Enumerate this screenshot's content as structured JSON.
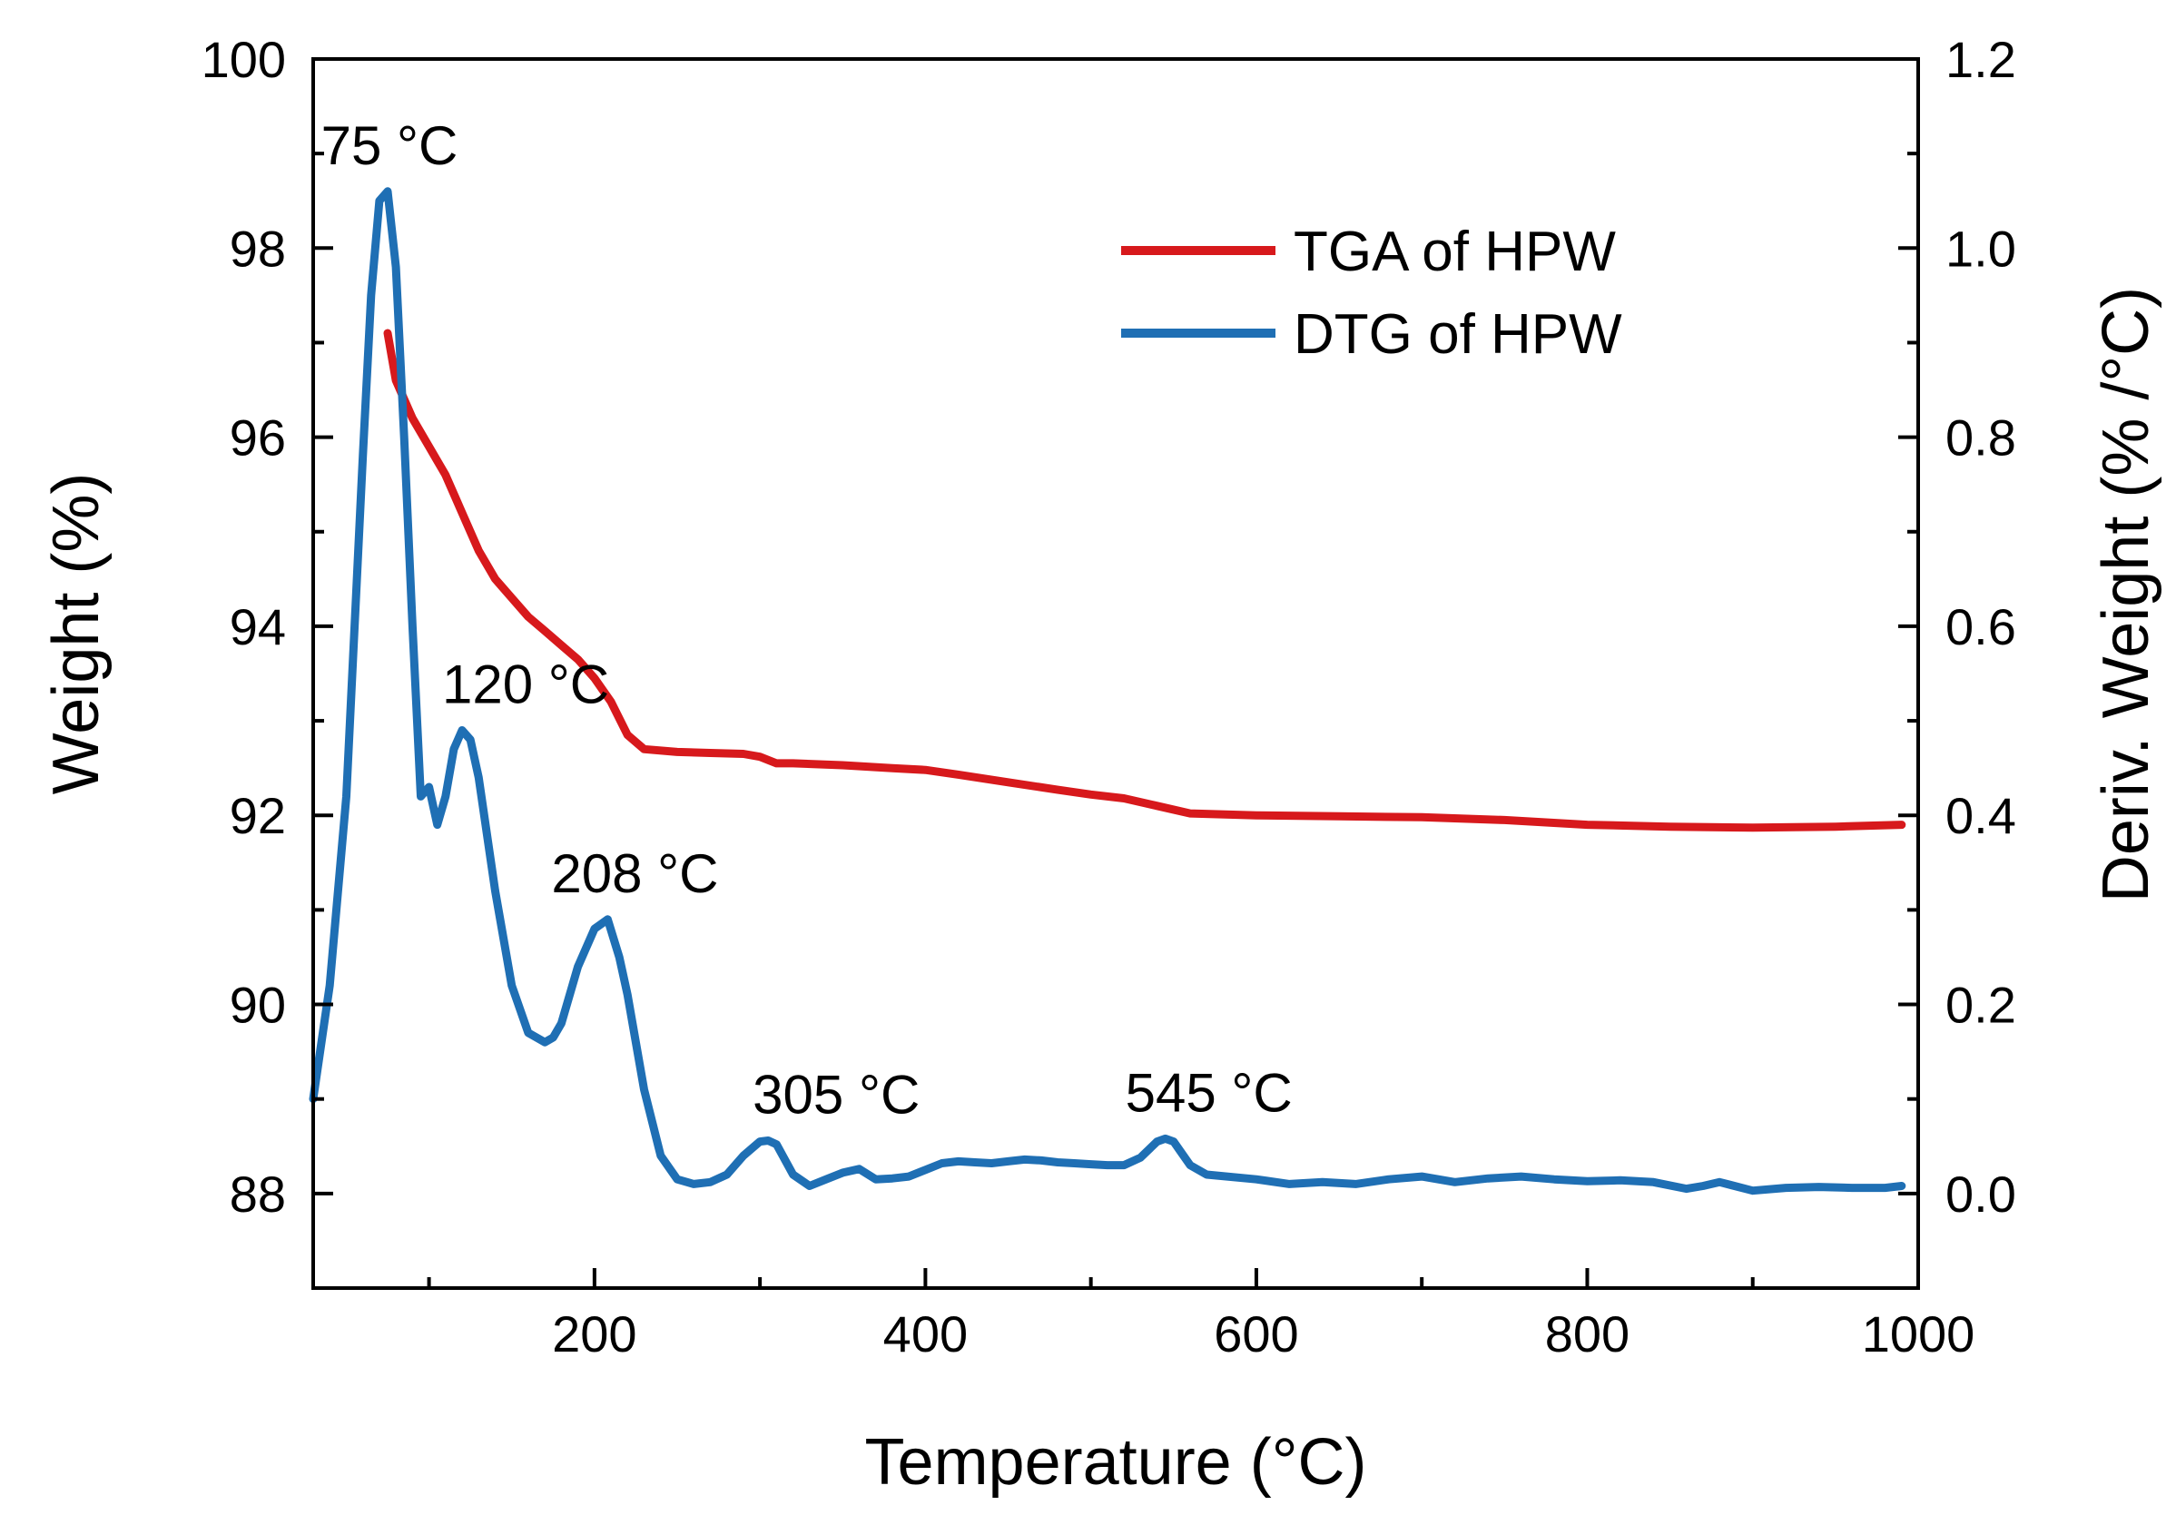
{
  "chart_data": {
    "type": "line",
    "title": "",
    "xlabel": "Temperature (°C)",
    "ylabel_left": "Weight (%)",
    "ylabel_right": "Deriv. Weight (% /°C)",
    "xlim": [
      30,
      1000
    ],
    "ylim_left": [
      87,
      100
    ],
    "ylim_right": [
      -0.1,
      1.2
    ],
    "xticks": [
      200,
      400,
      600,
      800,
      1000
    ],
    "yticks_left": [
      88,
      90,
      92,
      94,
      96,
      98,
      100
    ],
    "yticks_right": [
      0.0,
      0.2,
      0.4,
      0.6,
      0.8,
      1.0,
      1.2
    ],
    "xtick_labels": [
      "200",
      "400",
      "600",
      "800",
      "1000"
    ],
    "ytick_labels_left": [
      "88",
      "90",
      "92",
      "94",
      "96",
      "98",
      "100"
    ],
    "ytick_labels_right": [
      "0.0",
      "0.2",
      "0.4",
      "0.6",
      "0.8",
      "1.0",
      "1.2"
    ],
    "grid": false,
    "legend_position": "top-right",
    "series": [
      {
        "name": "TGA of  HPW",
        "axis": "left",
        "color": "#d7191c",
        "x": [
          75,
          80,
          90,
          100,
          110,
          120,
          130,
          140,
          150,
          160,
          170,
          180,
          190,
          200,
          210,
          220,
          230,
          250,
          270,
          290,
          300,
          310,
          320,
          350,
          380,
          400,
          420,
          450,
          480,
          500,
          520,
          540,
          560,
          600,
          650,
          700,
          750,
          800,
          850,
          900,
          950,
          990
        ],
        "y": [
          97.1,
          96.6,
          96.2,
          95.9,
          95.6,
          95.2,
          94.8,
          94.5,
          94.3,
          94.1,
          93.95,
          93.8,
          93.65,
          93.45,
          93.2,
          92.85,
          92.7,
          92.67,
          92.66,
          92.65,
          92.62,
          92.55,
          92.55,
          92.53,
          92.5,
          92.48,
          92.43,
          92.35,
          92.27,
          92.22,
          92.18,
          92.1,
          92.02,
          92.0,
          91.99,
          91.98,
          91.95,
          91.9,
          91.88,
          91.87,
          91.88,
          91.9
        ]
      },
      {
        "name": "DTG of  HPW",
        "axis": "right",
        "color": "#1f6fb4",
        "x": [
          30,
          40,
          50,
          60,
          65,
          70,
          75,
          80,
          85,
          90,
          95,
          100,
          105,
          110,
          115,
          120,
          125,
          130,
          140,
          150,
          160,
          170,
          175,
          180,
          190,
          200,
          208,
          215,
          220,
          230,
          240,
          250,
          260,
          270,
          280,
          290,
          300,
          305,
          310,
          320,
          330,
          340,
          350,
          360,
          370,
          380,
          390,
          400,
          410,
          420,
          430,
          440,
          450,
          460,
          470,
          480,
          490,
          500,
          510,
          520,
          530,
          540,
          545,
          550,
          560,
          570,
          600,
          620,
          640,
          660,
          680,
          700,
          720,
          740,
          760,
          780,
          800,
          820,
          840,
          860,
          870,
          880,
          900,
          920,
          940,
          960,
          980,
          990
        ],
        "y": [
          0.1,
          0.22,
          0.42,
          0.78,
          0.95,
          1.05,
          1.06,
          0.98,
          0.8,
          0.6,
          0.42,
          0.43,
          0.39,
          0.42,
          0.47,
          0.49,
          0.48,
          0.44,
          0.32,
          0.22,
          0.17,
          0.16,
          0.165,
          0.18,
          0.24,
          0.28,
          0.29,
          0.25,
          0.21,
          0.11,
          0.04,
          0.015,
          0.01,
          0.012,
          0.02,
          0.04,
          0.055,
          0.056,
          0.052,
          0.02,
          0.008,
          0.015,
          0.022,
          0.026,
          0.015,
          0.016,
          0.018,
          0.025,
          0.032,
          0.034,
          0.033,
          0.032,
          0.034,
          0.036,
          0.035,
          0.033,
          0.032,
          0.031,
          0.03,
          0.03,
          0.038,
          0.055,
          0.058,
          0.055,
          0.03,
          0.02,
          0.015,
          0.01,
          0.012,
          0.01,
          0.015,
          0.018,
          0.012,
          0.016,
          0.018,
          0.015,
          0.013,
          0.014,
          0.012,
          0.005,
          0.008,
          0.012,
          0.003,
          0.006,
          0.007,
          0.006,
          0.006,
          0.008
        ]
      }
    ],
    "annotations": [
      {
        "text": "75 °C",
        "x": 75,
        "y": 1.06
      },
      {
        "text": "120 °C",
        "x": 120,
        "y": 0.49
      },
      {
        "text": "208 °C",
        "x": 208,
        "y": 0.29
      },
      {
        "text": "305 °C",
        "x": 305,
        "y": 0.056
      },
      {
        "text": "545 °C",
        "x": 545,
        "y": 0.058
      }
    ]
  }
}
